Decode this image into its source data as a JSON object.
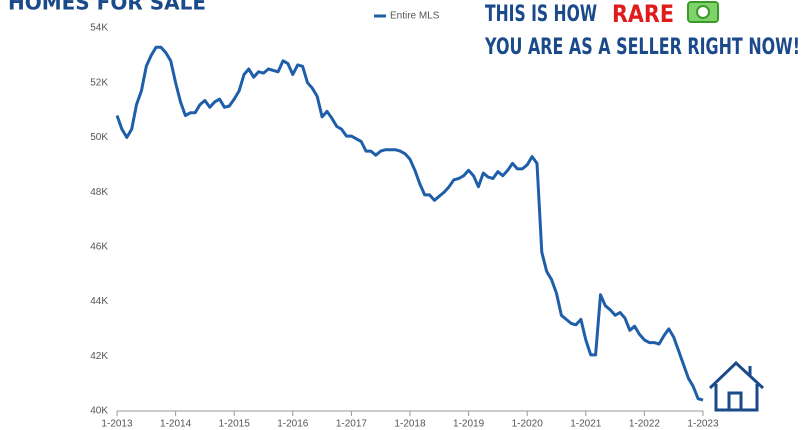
{
  "chart_data": {
    "type": "line",
    "title": "HOMES FOR SALE",
    "annotations": [
      "THIS IS HOW",
      "RARE",
      "YOU ARE AS A SELLER RIGHT NOW!"
    ],
    "categories": [
      "1-2013",
      null,
      null,
      null,
      null,
      null,
      null,
      null,
      null,
      null,
      null,
      null,
      "1-2014",
      null,
      null,
      null,
      null,
      null,
      null,
      null,
      null,
      null,
      null,
      null,
      "1-2015",
      null,
      null,
      null,
      null,
      null,
      null,
      null,
      null,
      null,
      null,
      null,
      "1-2016",
      null,
      null,
      null,
      null,
      null,
      null,
      null,
      null,
      null,
      null,
      null,
      "1-2017",
      null,
      null,
      null,
      null,
      null,
      null,
      null,
      null,
      null,
      null,
      null,
      "1-2018",
      null,
      null,
      null,
      null,
      null,
      null,
      null,
      null,
      null,
      null,
      null,
      "1-2019",
      null,
      null,
      null,
      null,
      null,
      null,
      null,
      null,
      null,
      null,
      null,
      "1-2020",
      null,
      null,
      null,
      null,
      null,
      null,
      null,
      null,
      null,
      null,
      null,
      "1-2021",
      null,
      null,
      null,
      null,
      null,
      null,
      null,
      null,
      null,
      null,
      null,
      "1-2022",
      null,
      null,
      null,
      null,
      null,
      null,
      null,
      null,
      null,
      null,
      null,
      "1-2023"
    ],
    "series": [
      {
        "name": "Entire MLS",
        "color": "#1f5ea8",
        "values": [
          50800,
          50300,
          50000,
          50300,
          51200,
          51700,
          52600,
          53000,
          53300,
          53300,
          53100,
          52800,
          52000,
          51300,
          50800,
          50900,
          50900,
          51200,
          51350,
          51100,
          51300,
          51400,
          51100,
          51150,
          51400,
          51700,
          52300,
          52500,
          52200,
          52400,
          52350,
          52500,
          52450,
          52400,
          52800,
          52700,
          52300,
          52650,
          52600,
          52000,
          51800,
          51500,
          50750,
          50950,
          50700,
          50400,
          50300,
          50050,
          50050,
          49950,
          49850,
          49500,
          49500,
          49350,
          49500,
          49550,
          49550,
          49550,
          49500,
          49400,
          49200,
          48800,
          48300,
          47900,
          47900,
          47700,
          47850,
          48000,
          48200,
          48450,
          48500,
          48600,
          48800,
          48600,
          48200,
          48700,
          48550,
          48500,
          48750,
          48600,
          48800,
          49050,
          48850,
          48850,
          49000,
          49300,
          49050,
          45800,
          45100,
          44800,
          44300,
          43500,
          43350,
          43200,
          43150,
          43350,
          42600,
          42050,
          42050,
          44250,
          43850,
          43700,
          43500,
          43600,
          43400,
          42950,
          43100,
          42800,
          42600,
          42500,
          42500,
          42450,
          42750,
          43000,
          42700,
          42200,
          41700,
          41200,
          40900,
          40450,
          40400
        ]
      }
    ],
    "ylim": [
      40000,
      54000
    ],
    "yticks": [
      {
        "value": 40000,
        "label": "40K"
      },
      {
        "value": 42000,
        "label": "42K"
      },
      {
        "value": 44000,
        "label": "44K"
      },
      {
        "value": 46000,
        "label": "46K"
      },
      {
        "value": 48000,
        "label": "48K"
      },
      {
        "value": 50000,
        "label": "50K"
      },
      {
        "value": 52000,
        "label": "52K"
      },
      {
        "value": 54000,
        "label": "54K"
      }
    ],
    "grid": false
  }
}
